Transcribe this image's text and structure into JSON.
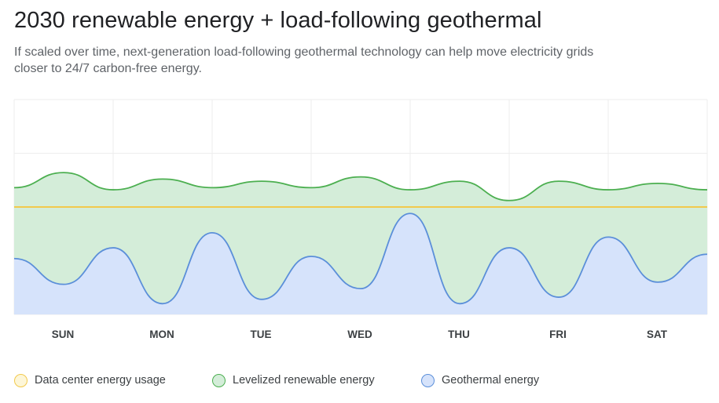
{
  "title": "2030 renewable energy + load-following geothermal",
  "subtitle": "If scaled over time, next-generation load-following geothermal technology can help move electricity grids closer to 24/7 carbon-free energy.",
  "colors": {
    "datacenter_line": "#f2c94c",
    "datacenter_fill": "#fdf6d8",
    "renewable_line": "#4caf50",
    "renewable_fill": "#d4edd9",
    "geothermal_line": "#5b8fd9",
    "geothermal_fill": "#d6e3fb",
    "grid": "#eeeeee"
  },
  "legend": [
    {
      "label": "Data center energy usage",
      "series": "datacenter"
    },
    {
      "label": "Levelized renewable energy",
      "series": "renewable"
    },
    {
      "label": "Geothermal energy",
      "series": "geothermal"
    }
  ],
  "chart_data": {
    "type": "area",
    "title": "2030 renewable energy + load-following geothermal",
    "xlabel": "",
    "ylabel": "",
    "categories": [
      "SUN",
      "MON",
      "TUE",
      "WED",
      "THU",
      "FRI",
      "SAT"
    ],
    "xlim": [
      0,
      7
    ],
    "ylim": [
      0,
      100
    ],
    "grid": true,
    "legend_position": "bottom",
    "series": [
      {
        "name": "Levelized renewable energy",
        "key": "renewable",
        "x": [
          0,
          0.5,
          1.0,
          1.5,
          2.0,
          2.5,
          3.0,
          3.5,
          4.0,
          4.5,
          5.0,
          5.5,
          6.0,
          6.5,
          7.0
        ],
        "values": [
          59,
          66,
          58,
          63,
          59,
          62,
          59,
          64,
          58,
          62,
          53,
          62,
          58,
          61,
          58
        ]
      },
      {
        "name": "Data center energy usage",
        "key": "datacenter",
        "x": [
          0,
          7
        ],
        "values": [
          50,
          50
        ]
      },
      {
        "name": "Geothermal energy",
        "key": "geothermal",
        "x": [
          0,
          0.5,
          1.0,
          1.5,
          2.0,
          2.5,
          3.0,
          3.5,
          4.0,
          4.5,
          5.0,
          5.5,
          6.0,
          6.5,
          7.0
        ],
        "values": [
          26,
          14,
          31,
          5,
          38,
          7,
          27,
          12,
          47,
          5,
          31,
          8,
          36,
          15,
          28
        ]
      }
    ]
  }
}
